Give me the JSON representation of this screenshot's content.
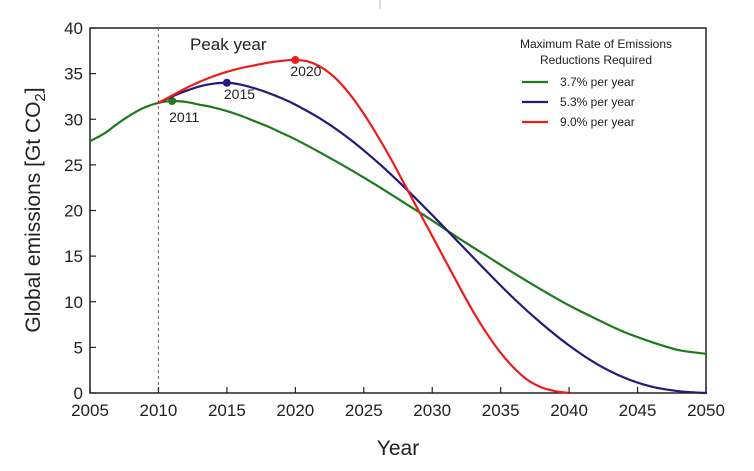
{
  "chart_data": {
    "type": "line",
    "title": "",
    "xlabel": "Year",
    "ylabel": "Global emissions [Gt CO",
    "ylabel_sub": "2",
    "ylabel_close": "]",
    "xlim": [
      2005,
      2050
    ],
    "ylim": [
      0,
      40
    ],
    "xticks": [
      "2005",
      "2010",
      "2015",
      "2020",
      "2025",
      "2030",
      "2035",
      "2040",
      "2045",
      "2050"
    ],
    "yticks": [
      "0",
      "5",
      "10",
      "15",
      "20",
      "25",
      "30",
      "35",
      "40"
    ],
    "grid": false,
    "legend": {
      "title_line1": "Maximum Rate of Emissions",
      "title_line2": "Reductions Required",
      "placement": "top-right"
    },
    "vline": {
      "x": 2010,
      "label": "Peak year"
    },
    "series": [
      {
        "name": "3.7% per year",
        "color": "#1e7a1e",
        "peak": {
          "x": 2011,
          "y": 32.0,
          "label": "2011"
        },
        "points": [
          [
            2005,
            27.6
          ],
          [
            2006,
            28.4
          ],
          [
            2007,
            29.5
          ],
          [
            2008,
            30.5
          ],
          [
            2009,
            31.3
          ],
          [
            2010,
            31.8
          ],
          [
            2011,
            32.0
          ],
          [
            2012,
            31.9
          ],
          [
            2013,
            31.6
          ],
          [
            2014,
            31.3
          ],
          [
            2015,
            30.9
          ],
          [
            2016,
            30.4
          ],
          [
            2017,
            29.8
          ],
          [
            2018,
            29.2
          ],
          [
            2019,
            28.5
          ],
          [
            2020,
            27.8
          ],
          [
            2022,
            26.2
          ],
          [
            2024,
            24.5
          ],
          [
            2026,
            22.7
          ],
          [
            2028,
            20.8
          ],
          [
            2030,
            18.9
          ],
          [
            2032,
            16.9
          ],
          [
            2034,
            15.0
          ],
          [
            2036,
            13.1
          ],
          [
            2038,
            11.3
          ],
          [
            2040,
            9.6
          ],
          [
            2042,
            8.1
          ],
          [
            2044,
            6.7
          ],
          [
            2046,
            5.6
          ],
          [
            2048,
            4.7
          ],
          [
            2050,
            4.3
          ]
        ]
      },
      {
        "name": "5.3% per year",
        "color": "#27197a",
        "peak": {
          "x": 2015,
          "y": 34.0,
          "label": "2015"
        },
        "points": [
          [
            2010,
            31.8
          ],
          [
            2011,
            32.5
          ],
          [
            2012,
            33.1
          ],
          [
            2013,
            33.6
          ],
          [
            2014,
            33.9
          ],
          [
            2015,
            34.0
          ],
          [
            2016,
            33.8
          ],
          [
            2017,
            33.4
          ],
          [
            2018,
            32.9
          ],
          [
            2019,
            32.3
          ],
          [
            2020,
            31.6
          ],
          [
            2022,
            29.9
          ],
          [
            2024,
            27.8
          ],
          [
            2026,
            25.3
          ],
          [
            2028,
            22.5
          ],
          [
            2030,
            19.5
          ],
          [
            2032,
            16.4
          ],
          [
            2034,
            13.3
          ],
          [
            2036,
            10.3
          ],
          [
            2038,
            7.6
          ],
          [
            2040,
            5.2
          ],
          [
            2042,
            3.2
          ],
          [
            2044,
            1.7
          ],
          [
            2046,
            0.7
          ],
          [
            2048,
            0.2
          ],
          [
            2050,
            0.0
          ]
        ]
      },
      {
        "name": "9.0% per year",
        "color": "#ee1b1b",
        "peak": {
          "x": 2020,
          "y": 36.5,
          "label": "2020"
        },
        "points": [
          [
            2010,
            31.8
          ],
          [
            2011,
            32.6
          ],
          [
            2012,
            33.4
          ],
          [
            2013,
            34.1
          ],
          [
            2014,
            34.7
          ],
          [
            2015,
            35.2
          ],
          [
            2016,
            35.6
          ],
          [
            2017,
            35.9
          ],
          [
            2018,
            36.2
          ],
          [
            2019,
            36.4
          ],
          [
            2020,
            36.5
          ],
          [
            2021,
            36.3
          ],
          [
            2022,
            35.6
          ],
          [
            2023,
            34.4
          ],
          [
            2024,
            32.7
          ],
          [
            2025,
            30.6
          ],
          [
            2026,
            28.2
          ],
          [
            2027,
            25.6
          ],
          [
            2028,
            22.8
          ],
          [
            2029,
            20.0
          ],
          [
            2030,
            17.2
          ],
          [
            2031,
            14.4
          ],
          [
            2032,
            11.6
          ],
          [
            2033,
            8.9
          ],
          [
            2034,
            6.5
          ],
          [
            2035,
            4.4
          ],
          [
            2036,
            2.7
          ],
          [
            2037,
            1.4
          ],
          [
            2038,
            0.6
          ],
          [
            2039,
            0.2
          ],
          [
            2040,
            0.0
          ]
        ]
      }
    ]
  }
}
